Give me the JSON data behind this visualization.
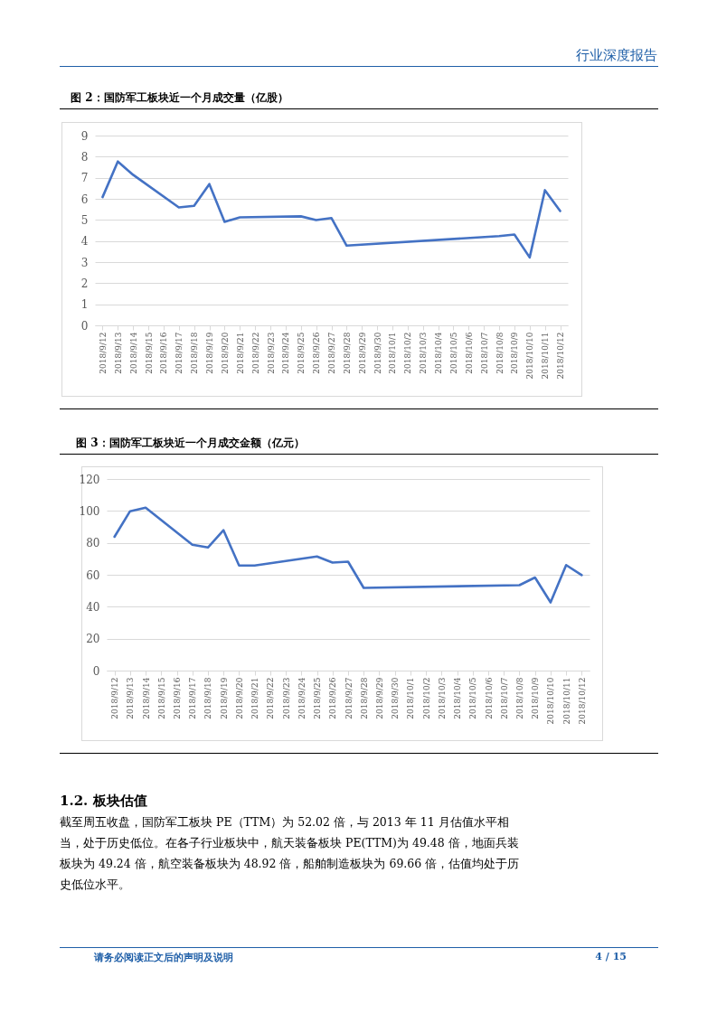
{
  "chart_data": [
    {
      "type": "line",
      "title": "图 2：国防军工板块近一个月成交量（亿股）",
      "annotations": [
        "行业深度报告"
      ],
      "x": [
        "2018-09-12",
        "2018-09-13",
        "2018-09-14",
        "2018-09-17",
        "2018-09-18",
        "2018-09-19",
        "2018-09-20",
        "2018-09-21",
        "2018-09-25",
        "2018-09-26",
        "2018-09-27",
        "2018-09-28",
        "2018-10-08",
        "2018-10-09",
        "2018-10-10",
        "2018-10-11",
        "2018-10-12"
      ],
      "series": [
        {
          "color": "#4472c4",
          "values": [
            6.08,
            7.77,
            7.14,
            5.59,
            5.67,
            6.7,
            4.91,
            5.12,
            5.17,
            4.99,
            5.09,
            3.78,
            4.23,
            4.31,
            3.22,
            6.41,
            5.42
          ]
        }
      ],
      "xlim": [
        "2018-09-11T12:00",
        "2018-10-12T12:00"
      ],
      "xticks": [
        {
          "value": "2018-09-12",
          "label": "2018/9/12"
        },
        {
          "value": "2018-09-13",
          "label": "2018/9/13"
        },
        {
          "value": "2018-09-14",
          "label": "2018/9/14"
        },
        {
          "value": "2018-09-15",
          "label": "2018/9/15"
        },
        {
          "value": "2018-09-16",
          "label": "2018/9/16"
        },
        {
          "value": "2018-09-17",
          "label": "2018/9/17"
        },
        {
          "value": "2018-09-18",
          "label": "2018/9/18"
        },
        {
          "value": "2018-09-19",
          "label": "2018/9/19"
        },
        {
          "value": "2018-09-20",
          "label": "2018/9/20"
        },
        {
          "value": "2018-09-21",
          "label": "2018/9/21"
        },
        {
          "value": "2018-09-22",
          "label": "2018/9/22"
        },
        {
          "value": "2018-09-23",
          "label": "2018/9/23"
        },
        {
          "value": "2018-09-24",
          "label": "2018/9/24"
        },
        {
          "value": "2018-09-25",
          "label": "2018/9/25"
        },
        {
          "value": "2018-09-26",
          "label": "2018/9/26"
        },
        {
          "value": "2018-09-27",
          "label": "2018/9/27"
        },
        {
          "value": "2018-09-28",
          "label": "2018/9/28"
        },
        {
          "value": "2018-09-29",
          "label": "2018/9/29"
        },
        {
          "value": "2018-09-30",
          "label": "2018/9/30"
        },
        {
          "value": "2018-10-01",
          "label": "2018/10/1"
        },
        {
          "value": "2018-10-02",
          "label": "2018/10/2"
        },
        {
          "value": "2018-10-03",
          "label": "2018/10/3"
        },
        {
          "value": "2018-10-04",
          "label": "2018/10/4"
        },
        {
          "value": "2018-10-05",
          "label": "2018/10/5"
        },
        {
          "value": "2018-10-06",
          "label": "2018/10/6"
        },
        {
          "value": "2018-10-07",
          "label": "2018/10/7"
        },
        {
          "value": "2018-10-08",
          "label": "2018/10/8"
        },
        {
          "value": "2018-10-09",
          "label": "2018/10/9"
        },
        {
          "value": "2018-10-10",
          "label": "2018/10/10"
        },
        {
          "value": "2018-10-11",
          "label": "2018/10/11"
        },
        {
          "value": "2018-10-12",
          "label": "2018/10/12"
        }
      ],
      "ylim": [
        0,
        9
      ],
      "yticks": [
        0,
        1,
        2,
        3,
        4,
        5,
        6,
        7,
        8,
        9
      ],
      "grid": "y"
    },
    {
      "type": "line",
      "title": "图 3：国防军工板块近一个月成交金额（亿元）",
      "annotations": [
        "1.2.  板块估值",
        "截至周五收盘，国防军工板块 PE（TTM）为 52.02 倍，与 2013 年 11 月估值水平相当，处于历史低位。在各子行业板块中，航天装备板块 PE(TTM)为 49.48 倍，地面兵装板块为 49.24 倍，航空装备板块为 48.92 倍，船舶制造板块为 69.66 倍，估值均处于历史低位水平。",
        "请务必阅读正文后的声明及说明",
        "4 / 15"
      ],
      "x": [
        "2018-09-12",
        "2018-09-13",
        "2018-09-14",
        "2018-09-17",
        "2018-09-18",
        "2018-09-19",
        "2018-09-20",
        "2018-09-21",
        "2018-09-25",
        "2018-09-26",
        "2018-09-27",
        "2018-09-28",
        "2018-10-08",
        "2018-10-09",
        "2018-10-10",
        "2018-10-11",
        "2018-10-12"
      ],
      "series": [
        {
          "color": "#4472c4",
          "values": [
            83.8,
            99.8,
            102.0,
            78.8,
            77.1,
            87.9,
            65.8,
            65.8,
            71.5,
            67.6,
            68.2,
            51.8,
            53.5,
            58.3,
            42.7,
            66.1,
            59.8
          ]
        }
      ],
      "xlim": [
        "2018-09-11T12:00",
        "2018-10-12T12:00"
      ],
      "xticks": [
        {
          "value": "2018-09-12",
          "label": "2018/9/12"
        },
        {
          "value": "2018-09-13",
          "label": "2018/9/13"
        },
        {
          "value": "2018-09-14",
          "label": "2018/9/14"
        },
        {
          "value": "2018-09-15",
          "label": "2018/9/15"
        },
        {
          "value": "2018-09-16",
          "label": "2018/9/16"
        },
        {
          "value": "2018-09-17",
          "label": "2018/9/17"
        },
        {
          "value": "2018-09-18",
          "label": "2018/9/18"
        },
        {
          "value": "2018-09-19",
          "label": "2018/9/19"
        },
        {
          "value": "2018-09-20",
          "label": "2018/9/20"
        },
        {
          "value": "2018-09-21",
          "label": "2018/9/21"
        },
        {
          "value": "2018-09-22",
          "label": "2018/9/22"
        },
        {
          "value": "2018-09-23",
          "label": "2018/9/23"
        },
        {
          "value": "2018-09-24",
          "label": "2018/9/24"
        },
        {
          "value": "2018-09-25",
          "label": "2018/9/25"
        },
        {
          "value": "2018-09-26",
          "label": "2018/9/26"
        },
        {
          "value": "2018-09-27",
          "label": "2018/9/27"
        },
        {
          "value": "2018-09-28",
          "label": "2018/9/28"
        },
        {
          "value": "2018-09-29",
          "label": "2018/9/29"
        },
        {
          "value": "2018-09-30",
          "label": "2018/9/30"
        },
        {
          "value": "2018-10-01",
          "label": "2018/10/1"
        },
        {
          "value": "2018-10-02",
          "label": "2018/10/2"
        },
        {
          "value": "2018-10-03",
          "label": "2018/10/3"
        },
        {
          "value": "2018-10-04",
          "label": "2018/10/4"
        },
        {
          "value": "2018-10-05",
          "label": "2018/10/5"
        },
        {
          "value": "2018-10-06",
          "label": "2018/10/6"
        },
        {
          "value": "2018-10-07",
          "label": "2018/10/7"
        },
        {
          "value": "2018-10-08",
          "label": "2018/10/8"
        },
        {
          "value": "2018-10-09",
          "label": "2018/10/9"
        },
        {
          "value": "2018-10-10",
          "label": "2018/10/10"
        },
        {
          "value": "2018-10-11",
          "label": "2018/10/11"
        },
        {
          "value": "2018-10-12",
          "label": "2018/10/12"
        }
      ],
      "ylim": [
        0,
        120
      ],
      "yticks": [
        0,
        20,
        40,
        60,
        80,
        100,
        120
      ],
      "grid": "y"
    }
  ]
}
